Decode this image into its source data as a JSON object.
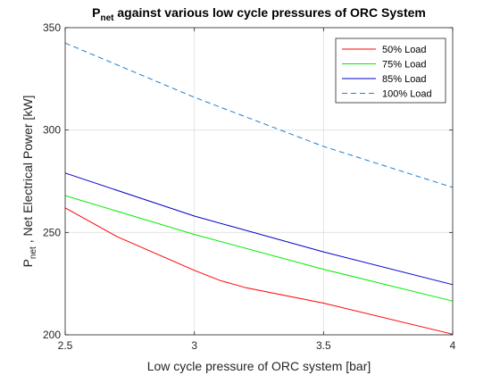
{
  "chart_data": {
    "type": "line",
    "title": {
      "main": "P",
      "sub": "net",
      "rest": " against various low cycle pressures of ORC System"
    },
    "xlabel": "Low cycle pressure of ORC system [bar]",
    "ylabel": {
      "main": "P",
      "sub": "net",
      "rest": " , Net Electrical Power [kW]"
    },
    "xlim": [
      2.5,
      4
    ],
    "ylim": [
      200,
      350
    ],
    "xticks": [
      {
        "value": 2.5,
        "label": "2.5"
      },
      {
        "value": 3,
        "label": "3"
      },
      {
        "value": 3.5,
        "label": "3.5"
      },
      {
        "value": 4,
        "label": "4"
      }
    ],
    "yticks": [
      {
        "value": 200,
        "label": "200"
      },
      {
        "value": 250,
        "label": "250"
      },
      {
        "value": 300,
        "label": "300"
      },
      {
        "value": 350,
        "label": "350"
      }
    ],
    "grid": true,
    "legend_position": "top-right",
    "series": [
      {
        "name": "50% Load",
        "color": "#ff0000",
        "dash": "solid",
        "x": [
          2.5,
          2.7,
          3.0,
          3.1,
          3.2,
          3.5,
          4.0
        ],
        "y": [
          262.0,
          248.0,
          231.5,
          226.5,
          223.0,
          215.5,
          200.3
        ]
      },
      {
        "name": "75% Load",
        "color": "#00ee00",
        "dash": "solid",
        "x": [
          2.5,
          3.0,
          3.5,
          4.0
        ],
        "y": [
          268.0,
          249.0,
          232.0,
          216.5
        ]
      },
      {
        "name": "85% Load",
        "color": "#0000cc",
        "dash": "solid",
        "x": [
          2.5,
          3.0,
          3.5,
          4.0
        ],
        "y": [
          279.0,
          258.0,
          240.5,
          224.5
        ]
      },
      {
        "name": "100% Load",
        "color": "#1f7fcf",
        "dash": "dashed",
        "x": [
          2.5,
          3.0,
          3.5,
          4.0
        ],
        "y": [
          342.5,
          316.0,
          292.0,
          272.0
        ]
      }
    ]
  }
}
